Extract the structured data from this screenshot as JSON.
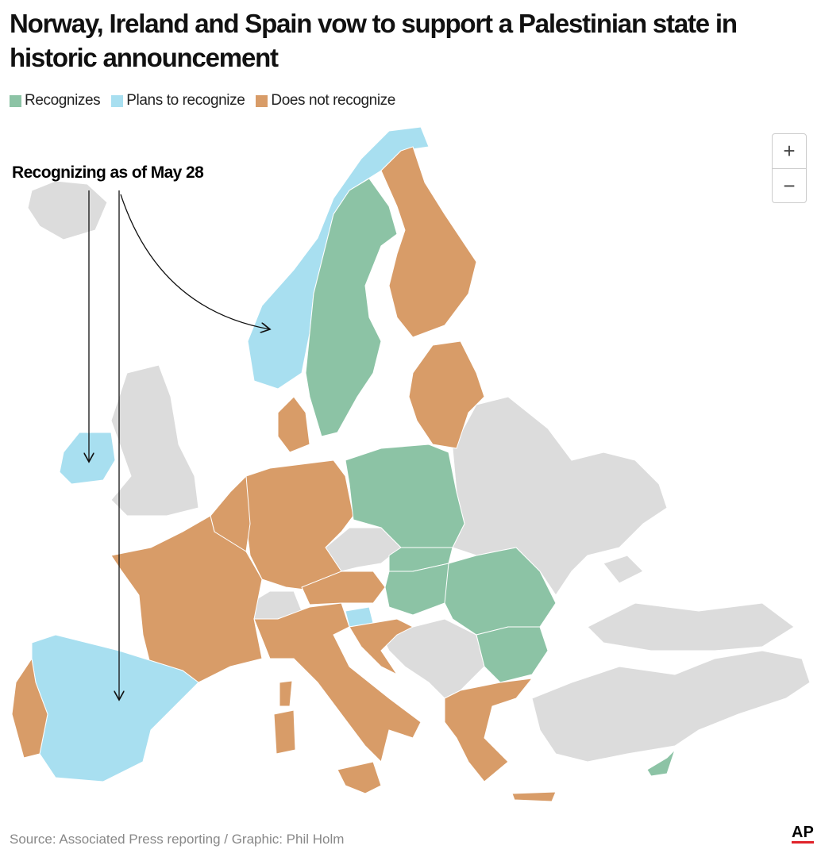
{
  "header": {
    "title": "Norway, Ireland and Spain vow to support a Palestinian state in historic announcement"
  },
  "legend": [
    {
      "label": "Recognizes",
      "color": "#8cc3a5"
    },
    {
      "label": "Plans to recognize",
      "color": "#a8dff0"
    },
    {
      "label": "Does not recognize",
      "color": "#d89c68"
    }
  ],
  "annotation": "Recognizing as of May 28",
  "zoom": {
    "in": "+",
    "out": "−"
  },
  "footer": {
    "source": "Source: Associated Press reporting / Graphic: Phil Holm",
    "logo": "AP"
  }
}
